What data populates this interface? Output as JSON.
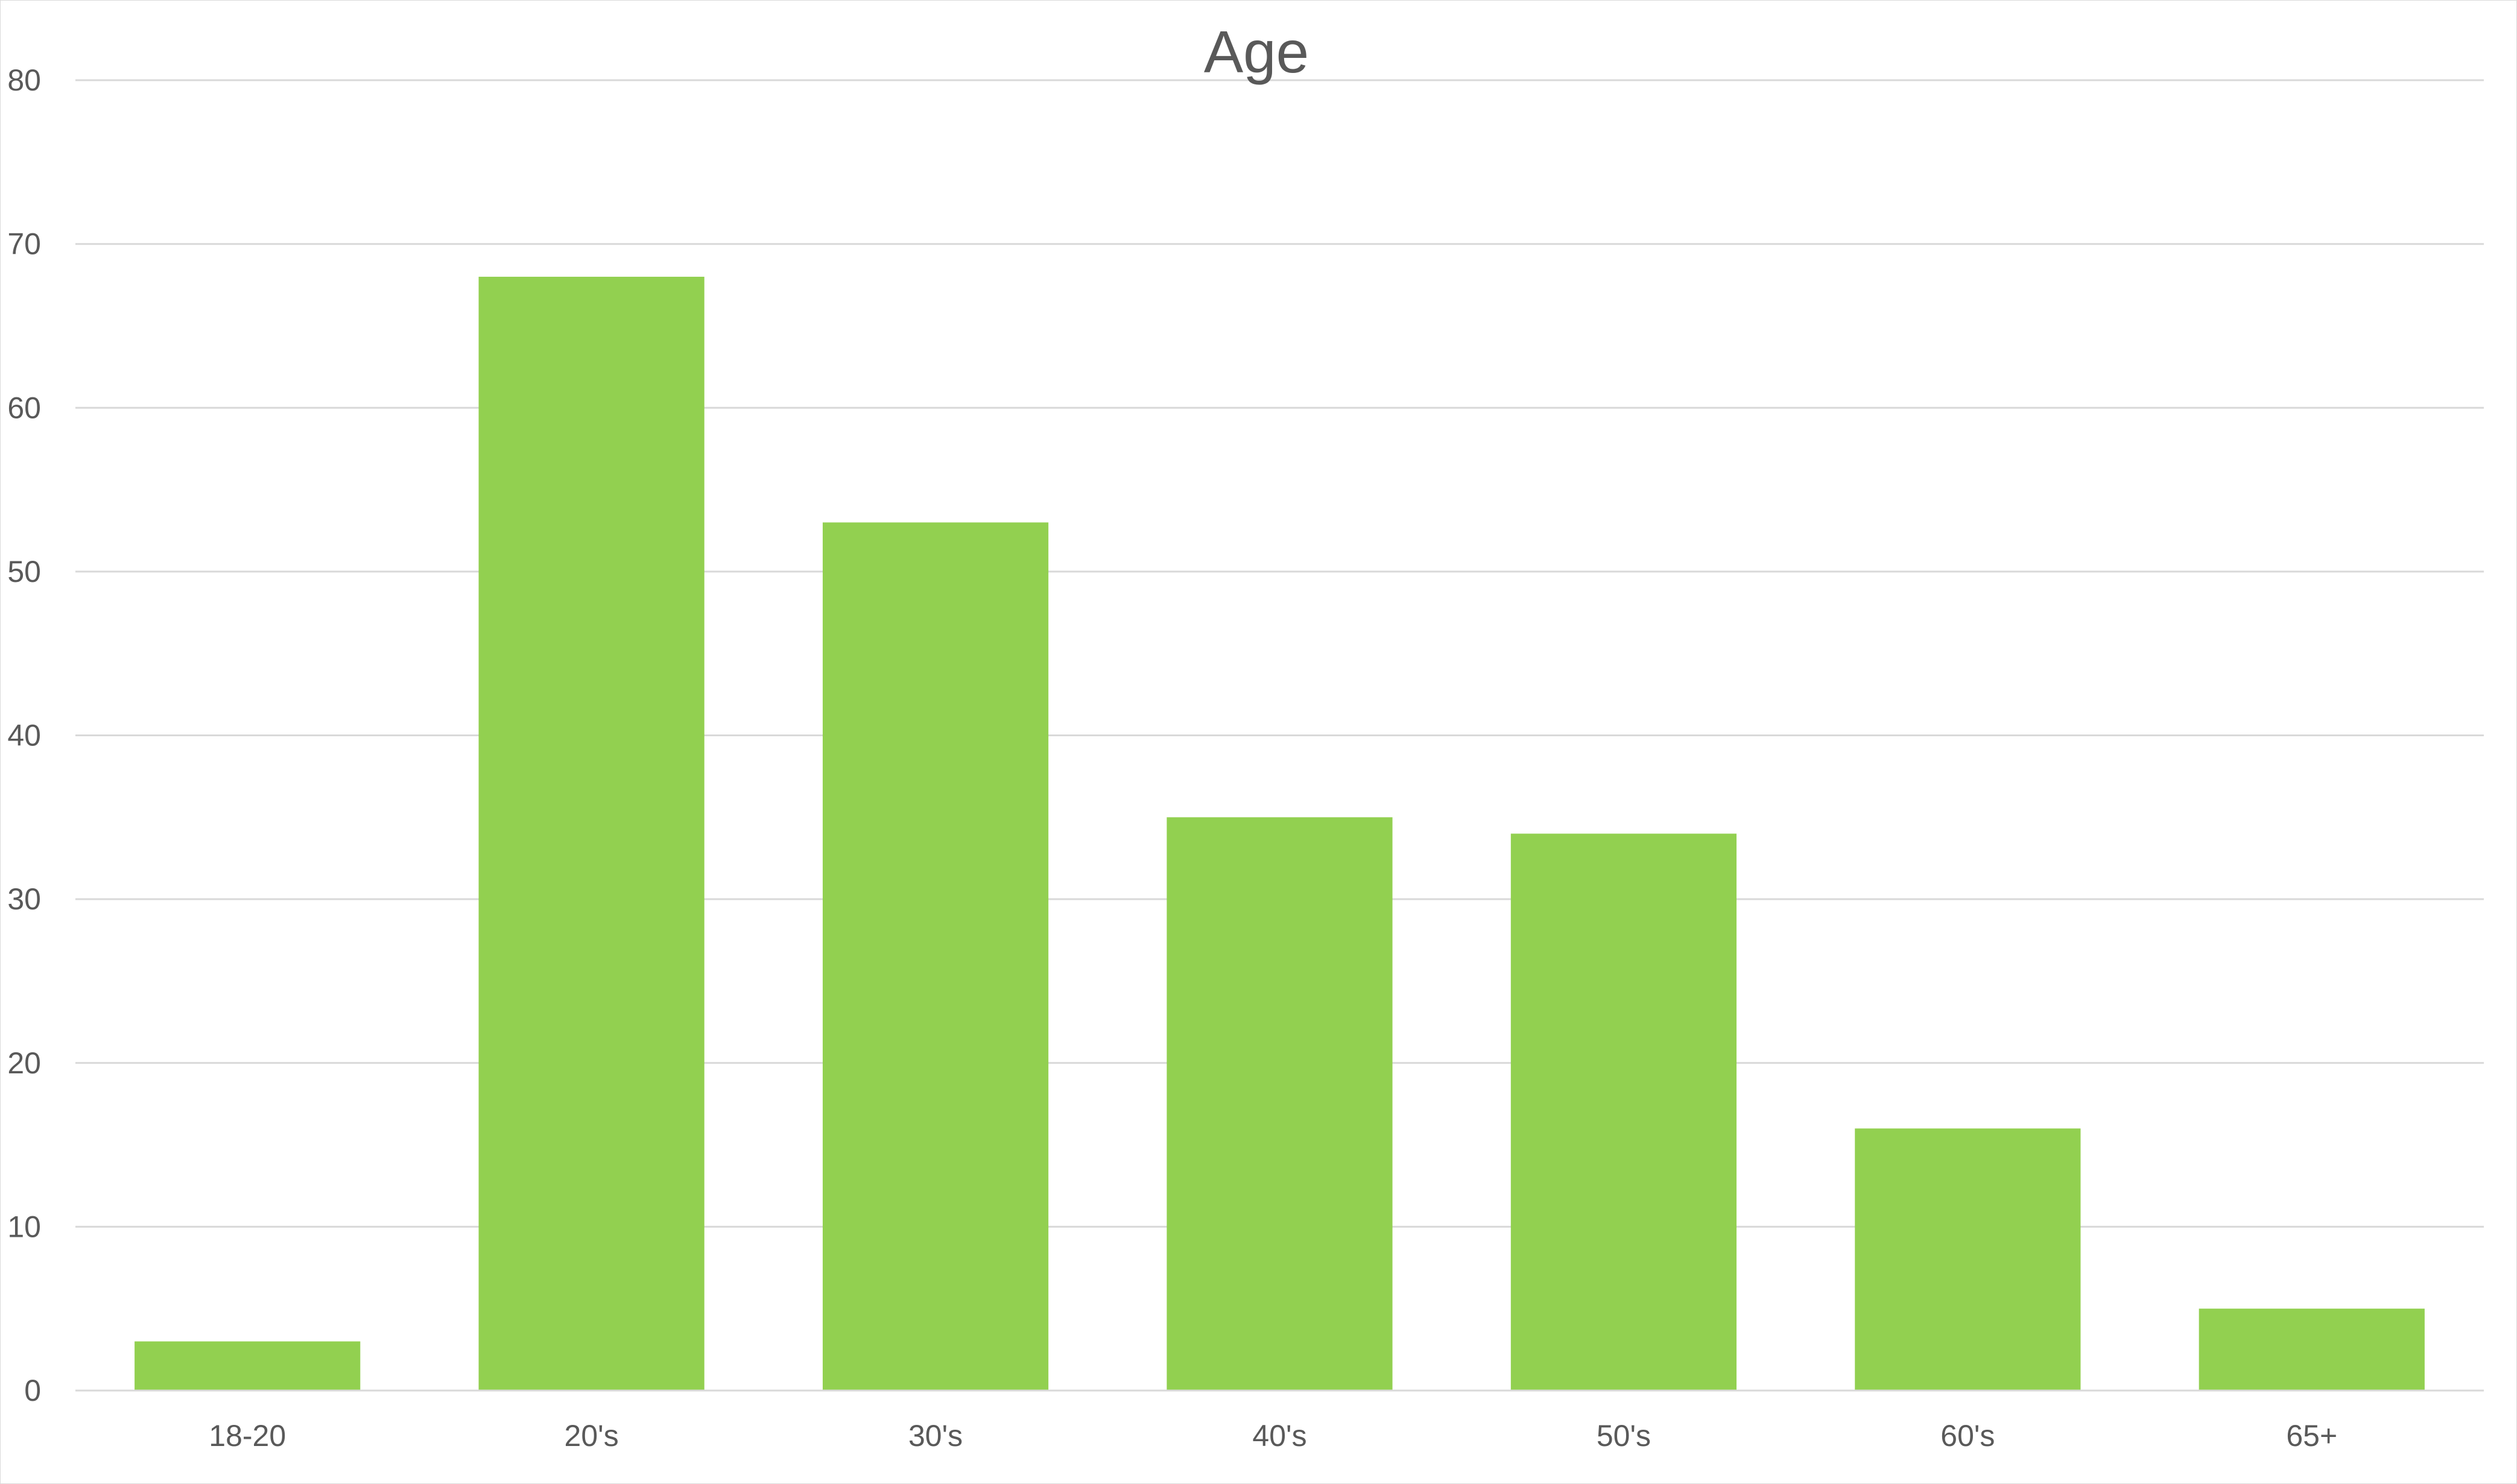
{
  "chart_data": {
    "type": "bar",
    "title": "Age",
    "xlabel": "",
    "ylabel": "",
    "categories": [
      "18-20",
      "20's",
      "30's",
      "40's",
      "50's",
      "60's",
      "65+"
    ],
    "values": [
      3,
      68,
      53,
      35,
      34,
      16,
      5
    ],
    "ylim": [
      0,
      80
    ],
    "yticks": [
      0,
      10,
      20,
      30,
      40,
      50,
      60,
      70,
      80
    ],
    "grid": true,
    "legend": "none",
    "bar_color": "#92D050"
  }
}
